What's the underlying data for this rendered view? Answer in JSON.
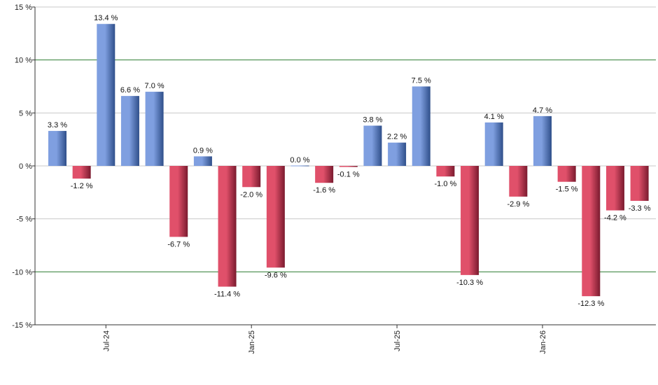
{
  "chart_data": {
    "type": "bar",
    "title": "",
    "xlabel": "",
    "ylabel": "",
    "ylim": [
      -15,
      15
    ],
    "y_ticks": [
      15,
      10,
      5,
      0,
      -5,
      -10,
      -15
    ],
    "y_tick_labels": [
      "15 %",
      "10 %",
      "5 %",
      "0 %",
      "-5 %",
      "-10 %",
      "-15 %"
    ],
    "emphasized_gridlines": [
      10,
      -10
    ],
    "x_tick_labels": [
      {
        "label": "Jul-24",
        "index": 2
      },
      {
        "label": "Jan-25",
        "index": 8
      },
      {
        "label": "Jul-25",
        "index": 14
      },
      {
        "label": "Jan-26",
        "index": 20
      }
    ],
    "values": [
      3.3,
      -1.2,
      13.4,
      6.6,
      7.0,
      -6.7,
      0.9,
      -11.4,
      -2.0,
      -9.6,
      0.0,
      -1.6,
      -0.1,
      3.8,
      2.2,
      7.5,
      -1.0,
      -10.3,
      4.1,
      -2.9,
      4.7,
      -1.5,
      -12.3,
      -4.2,
      -3.3
    ],
    "value_labels": [
      "3.3 %",
      "-1.2 %",
      "13.4 %",
      "6.6 %",
      "7.0 %",
      "-6.7 %",
      "0.9 %",
      "-11.4 %",
      "-2.0 %",
      "-9.6 %",
      "0.0 %",
      "-1.6 %",
      "-0.1 %",
      "3.8 %",
      "2.2 %",
      "7.5 %",
      "-1.0 %",
      "-10.3 %",
      "4.1 %",
      "-2.9 %",
      "4.7 %",
      "-1.5 %",
      "-12.3 %",
      "-4.2 %",
      "-3.3 %"
    ],
    "colors": {
      "positive": "#7f9fe0",
      "positive_dark": "#2f4f8a",
      "negative": "#e0506a",
      "negative_dark": "#7a1a2e",
      "gridline": "#c8c8c8",
      "emphasized_gridline": "#2e7d32",
      "axis": "#333333"
    }
  }
}
